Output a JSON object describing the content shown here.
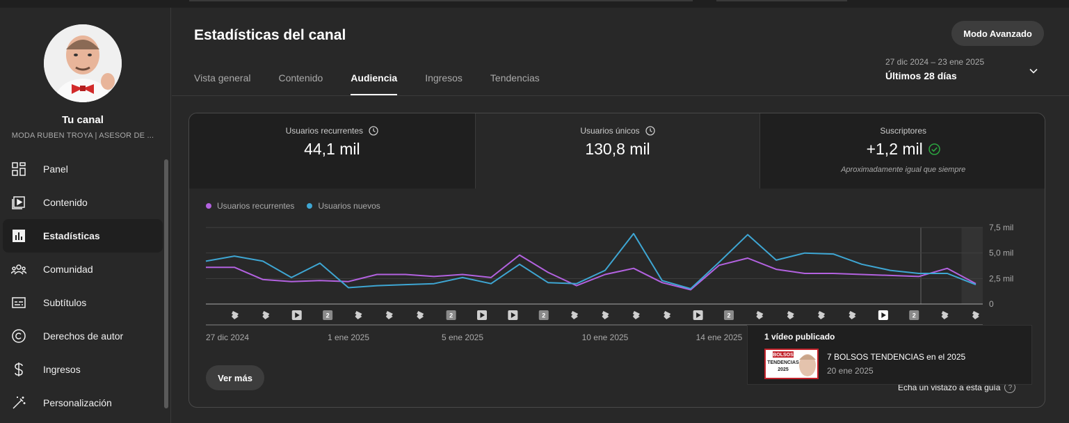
{
  "channel": {
    "title": "Tu canal",
    "name": "MODA RUBEN TROYA | ASESOR DE ..."
  },
  "nav": [
    {
      "label": "Panel",
      "icon": "dashboard-icon",
      "active": false
    },
    {
      "label": "Contenido",
      "icon": "content-icon",
      "active": false
    },
    {
      "label": "Estadísticas",
      "icon": "analytics-icon",
      "active": true
    },
    {
      "label": "Comunidad",
      "icon": "community-icon",
      "active": false
    },
    {
      "label": "Subtítulos",
      "icon": "subtitles-icon",
      "active": false
    },
    {
      "label": "Derechos de autor",
      "icon": "copyright-icon",
      "active": false
    },
    {
      "label": "Ingresos",
      "icon": "dollar-icon",
      "active": false
    },
    {
      "label": "Personalización",
      "icon": "magic-wand-icon",
      "active": false
    }
  ],
  "header": {
    "title": "Estadísticas del canal",
    "advanced_button": "Modo Avanzado",
    "date_range": "27 dic 2024 – 23 ene 2025",
    "date_label": "Últimos 28 días"
  },
  "tabs": [
    {
      "label": "Vista general",
      "active": false
    },
    {
      "label": "Contenido",
      "active": false
    },
    {
      "label": "Audiencia",
      "active": true
    },
    {
      "label": "Ingresos",
      "active": false
    },
    {
      "label": "Tendencias",
      "active": false
    }
  ],
  "metrics": [
    {
      "label": "Usuarios recurrentes",
      "value": "44,1 mil",
      "note": ""
    },
    {
      "label": "Usuarios únicos",
      "value": "130,8 mil",
      "note": ""
    },
    {
      "label": "Suscriptores",
      "value": "+1,2 mil",
      "note": "Aproximadamente igual que siempre"
    }
  ],
  "chart_data": {
    "type": "line",
    "x_labels": [
      "27 dic 2024",
      "1 ene 2025",
      "5 ene 2025",
      "10 ene 2025",
      "14 ene 2025"
    ],
    "x_label_days": [
      0,
      5,
      9,
      14,
      18
    ],
    "y_tick_labels": [
      "7,5 mil",
      "5,0 mil",
      "2,5 mil",
      "0"
    ],
    "y_ticks": [
      7.5,
      5.0,
      2.5,
      0
    ],
    "ylim": [
      0,
      7.5
    ],
    "series": [
      {
        "name": "Usuarios recurrentes",
        "color": "#b362e0",
        "values": [
          3.6,
          3.6,
          2.4,
          2.2,
          2.3,
          2.2,
          2.9,
          2.9,
          2.7,
          2.9,
          2.6,
          4.8,
          3.1,
          1.8,
          2.9,
          3.5,
          2.1,
          1.4,
          3.8,
          4.5,
          3.4,
          3.0,
          3.0,
          2.9,
          2.8,
          2.7,
          3.5,
          2.0
        ]
      },
      {
        "name": "Usuarios nuevos",
        "color": "#3ea6d3",
        "values": [
          4.2,
          4.7,
          4.2,
          2.6,
          4.0,
          1.6,
          1.8,
          1.9,
          2.0,
          2.6,
          2.0,
          3.9,
          2.1,
          2.0,
          3.3,
          6.9,
          2.3,
          1.5,
          4.1,
          6.8,
          4.3,
          5.0,
          4.9,
          3.9,
          3.3,
          3.0,
          3.0,
          1.9
        ]
      }
    ],
    "markers": [
      "shorts",
      "shorts",
      "video",
      "2",
      "shorts",
      "shorts",
      "shorts",
      "2",
      "video",
      "video",
      "2",
      "shorts",
      "shorts",
      "shorts",
      "shorts",
      "video",
      "2",
      "shorts",
      "shorts",
      "shorts",
      "shorts",
      "video",
      "2",
      "shorts",
      "shorts"
    ],
    "grid": true,
    "legend": "top-left"
  },
  "buttons": {
    "ver_mas": "Ver más"
  },
  "guide": {
    "text": "Echa un vistazo a esta guía",
    "q": "?"
  },
  "tooltip": {
    "title": "1 vídeo publicado",
    "video_title": "7 BOLSOS TENDENCIAS en el 2025",
    "video_date": "20 ene 2025",
    "thumb_text_1": "BOLSOS",
    "thumb_text_2": "TENDENCIAS",
    "thumb_text_3": "2025"
  }
}
